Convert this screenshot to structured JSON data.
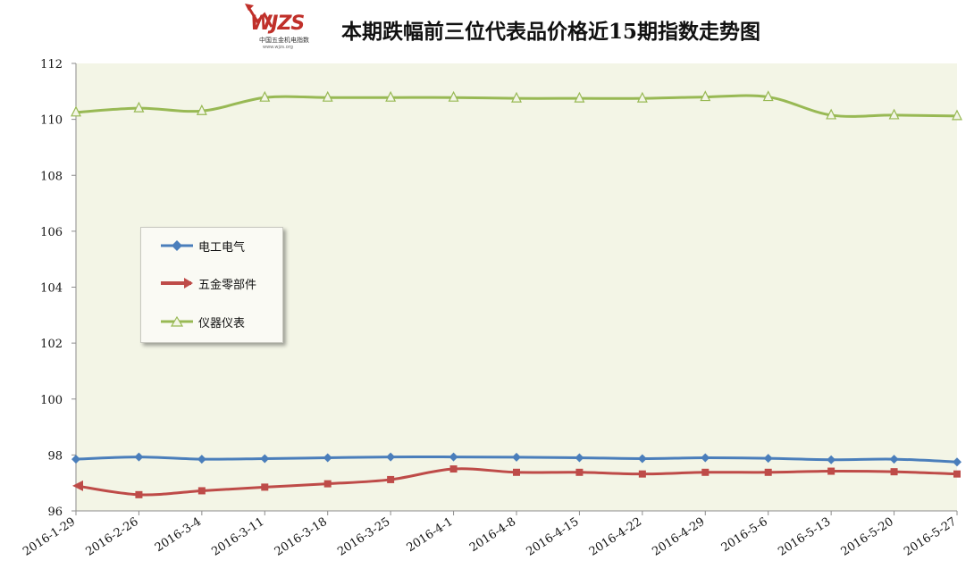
{
  "logo": {
    "text": "WJZS",
    "subtitle": "中国五金机电指数",
    "url_text": "www.wjzs.org"
  },
  "title": "本期跌幅前三位代表品价格近15期指数走势图",
  "chart_data": {
    "type": "line",
    "title": "本期跌幅前三位代表品价格近15期指数走势图",
    "xlabel": "",
    "ylabel": "",
    "ylim": [
      96,
      112
    ],
    "yticks": [
      96,
      98,
      100,
      102,
      104,
      106,
      108,
      110,
      112
    ],
    "grid": "off",
    "legend_position": "left-middle",
    "categories": [
      "2016-1-29",
      "2016-2-26",
      "2016-3-4",
      "2016-3-11",
      "2016-3-18",
      "2016-3-25",
      "2016-4-1",
      "2016-4-8",
      "2016-4-15",
      "2016-4-22",
      "2016-4-29",
      "2016-5-6",
      "2016-5-13",
      "2016-5-20",
      "2016-5-27"
    ],
    "series": [
      {
        "name": "电工电气",
        "color": "#4a7ebb",
        "marker": "diamond",
        "values": [
          97.85,
          97.93,
          97.85,
          97.87,
          97.9,
          97.93,
          97.93,
          97.92,
          97.9,
          97.87,
          97.9,
          97.88,
          97.83,
          97.85,
          97.75
        ]
      },
      {
        "name": "五金零部件",
        "color": "#be4b48",
        "marker": "arrow",
        "values": [
          96.9,
          96.58,
          96.72,
          96.85,
          96.97,
          97.12,
          97.5,
          97.38,
          97.38,
          97.32,
          97.38,
          97.38,
          97.42,
          97.4,
          97.32
        ]
      },
      {
        "name": "仪器仪表",
        "color": "#98b954",
        "marker": "triangle",
        "values": [
          110.25,
          110.4,
          110.3,
          110.78,
          110.78,
          110.78,
          110.78,
          110.75,
          110.75,
          110.75,
          110.8,
          110.8,
          110.15,
          110.15,
          110.12
        ]
      }
    ],
    "colors": {
      "plot_background": "#f3f5e6",
      "axis": "#8c8c8c"
    }
  }
}
